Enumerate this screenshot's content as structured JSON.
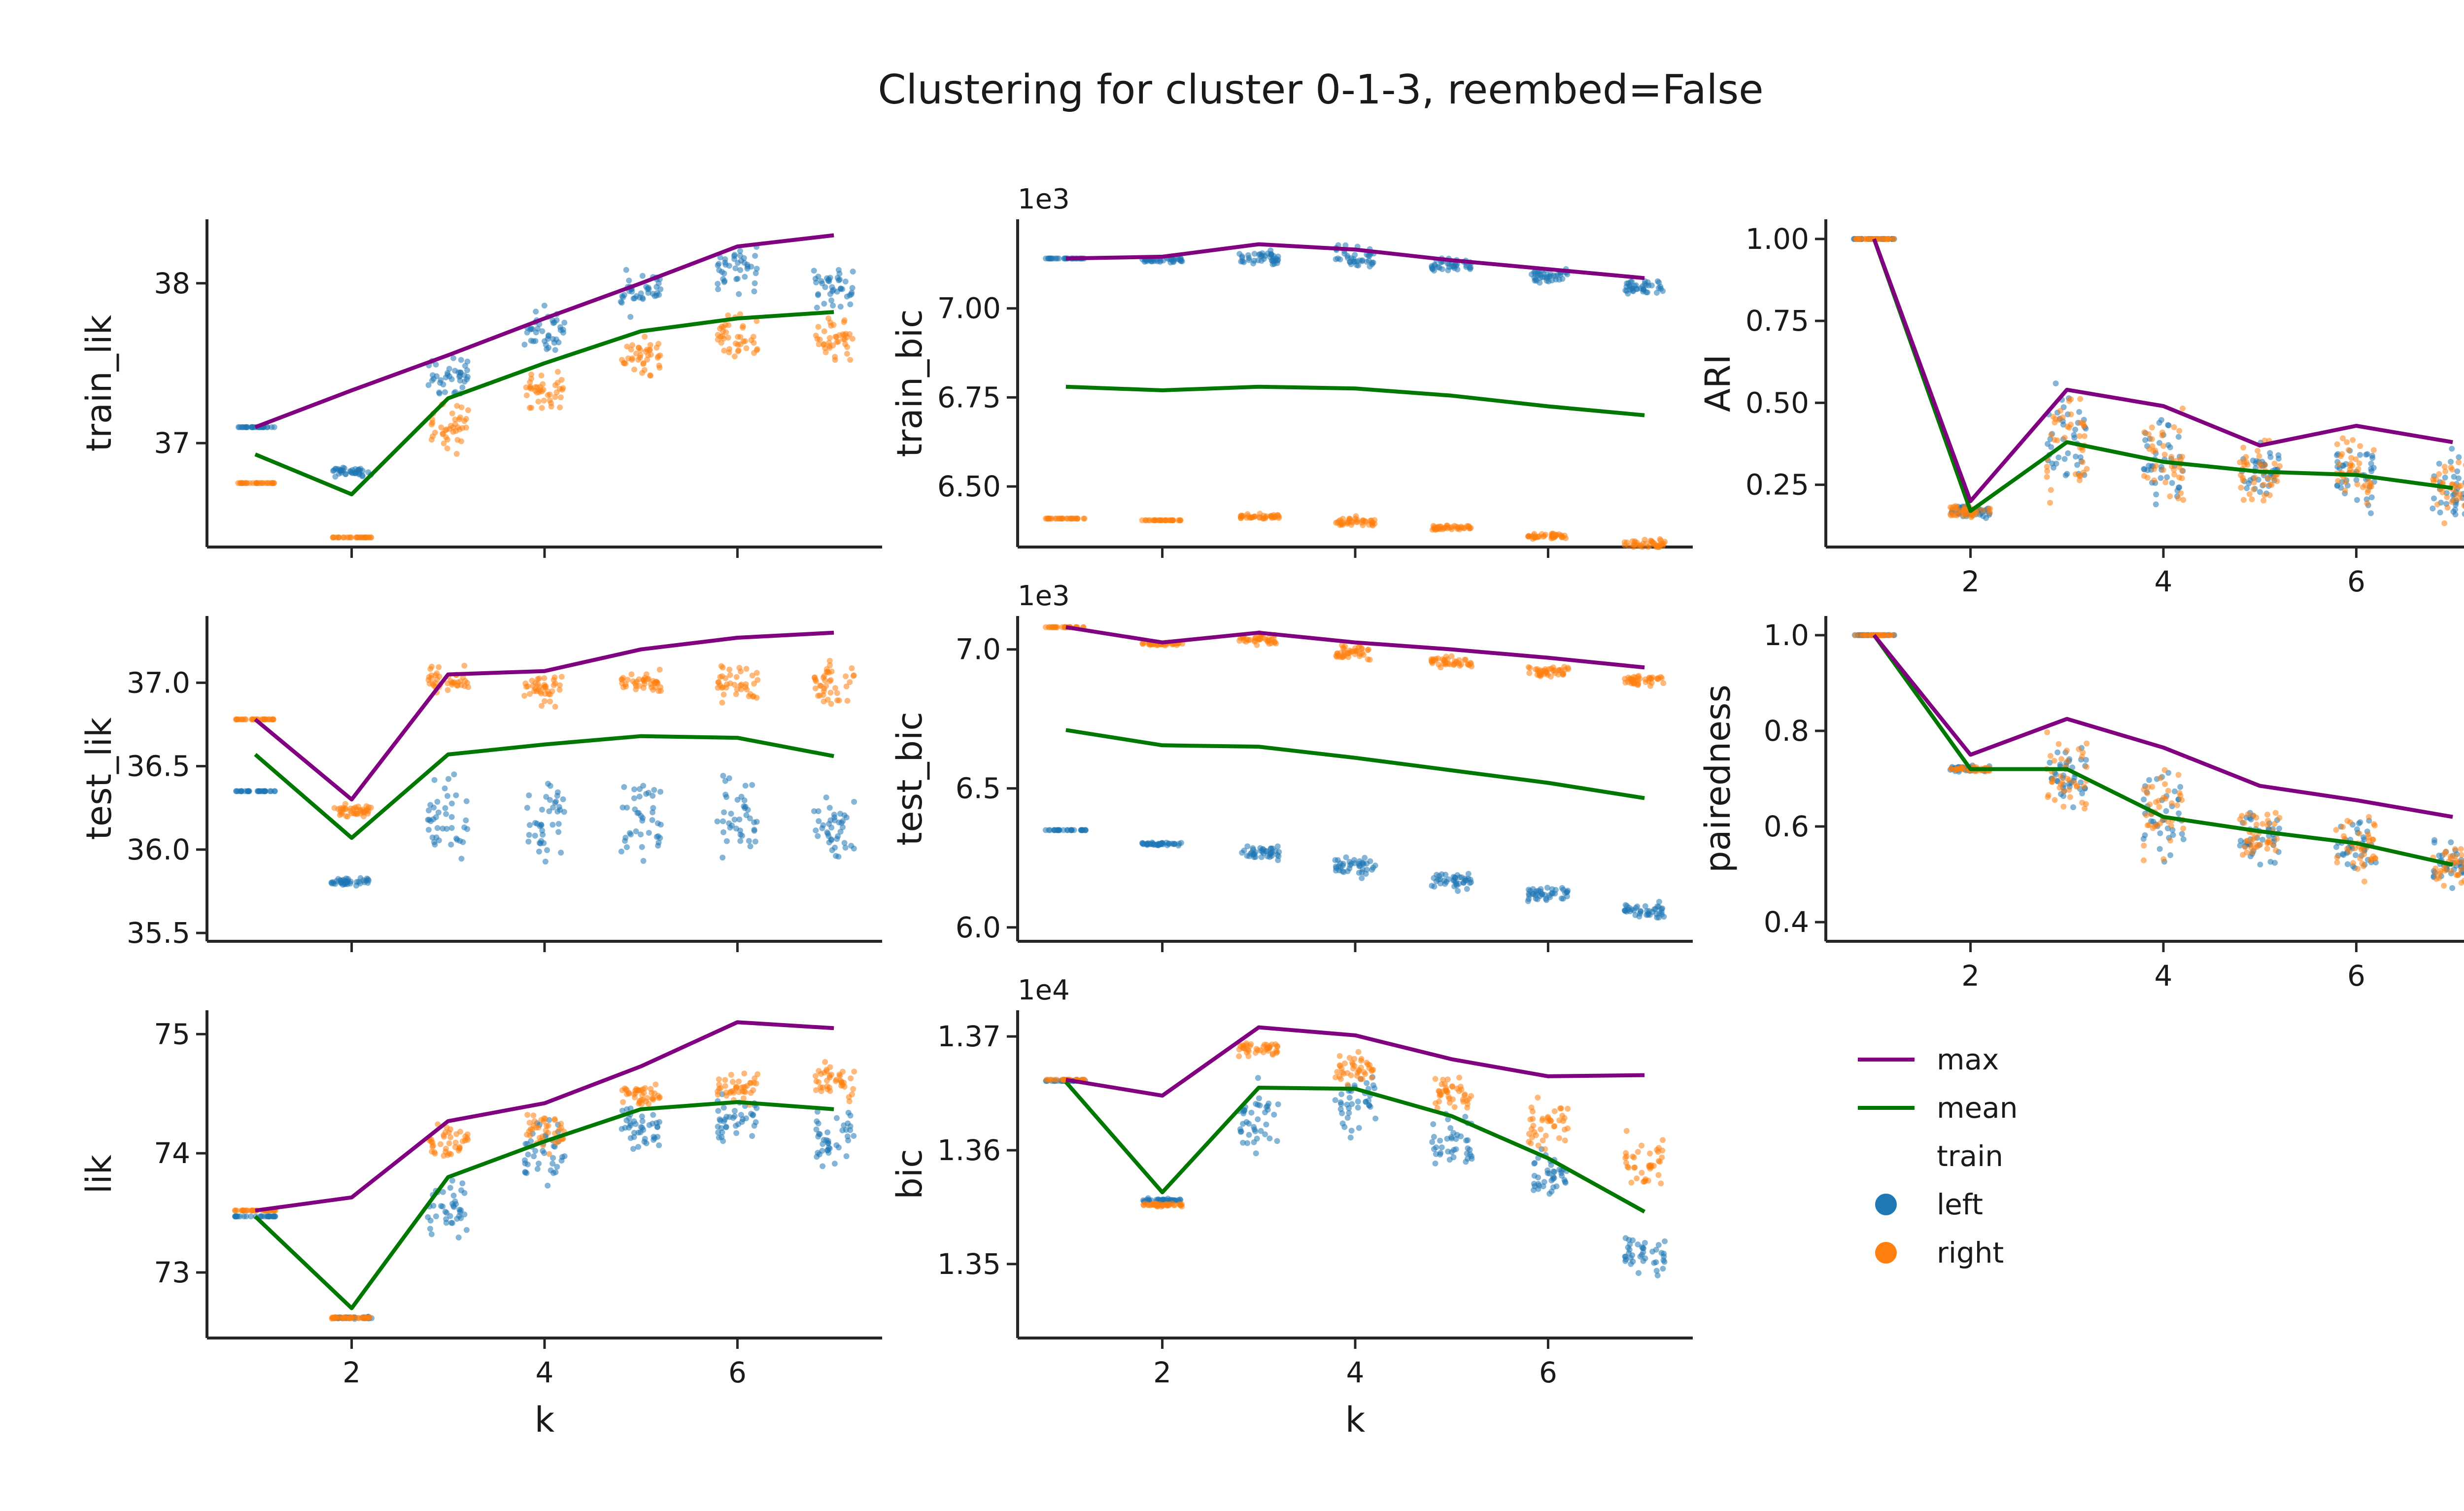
{
  "figure": {
    "title": "Clustering for cluster 0-1-3, reembed=False"
  },
  "colors": {
    "max": "#800080",
    "mean": "#007700",
    "left": "#1f77b4",
    "right": "#ff7f0e"
  },
  "legend": {
    "lines": [
      {
        "label": "max",
        "color": "#800080"
      },
      {
        "label": "mean",
        "color": "#007700"
      }
    ],
    "points_title": "train",
    "points": [
      {
        "label": "left",
        "color": "#1f77b4"
      },
      {
        "label": "right",
        "color": "#ff7f0e"
      }
    ]
  },
  "chart_data": [
    {
      "id": "train_lik",
      "type": "scatter+line",
      "ylabel": "train_lik",
      "xlabel": "",
      "offset": "",
      "ylim": [
        36.35,
        38.4
      ],
      "yticks": [
        37,
        38
      ],
      "ytick_labels": [
        "37",
        "38"
      ],
      "xticks": [
        2,
        4,
        6
      ],
      "show_xtick_labels": false,
      "x": [
        1,
        2,
        3,
        4,
        5,
        6,
        7
      ],
      "max": [
        37.1,
        37.33,
        37.55,
        37.78,
        38.0,
        38.23,
        38.3
      ],
      "mean": [
        36.93,
        36.68,
        37.28,
        37.5,
        37.7,
        37.78,
        37.82
      ],
      "left": [
        [
          37.1,
          0.0
        ],
        [
          36.82,
          0.04
        ],
        [
          37.42,
          0.16
        ],
        [
          37.7,
          0.2
        ],
        [
          37.95,
          0.2
        ],
        [
          38.1,
          0.2
        ],
        [
          37.97,
          0.2
        ]
      ],
      "right": [
        [
          36.75,
          0.0
        ],
        [
          36.41,
          0.0
        ],
        [
          37.1,
          0.22
        ],
        [
          37.33,
          0.15
        ],
        [
          37.55,
          0.18
        ],
        [
          37.65,
          0.2
        ],
        [
          37.65,
          0.18
        ]
      ]
    },
    {
      "id": "train_bic",
      "type": "scatter+line",
      "ylabel": "train_bic",
      "xlabel": "",
      "offset": "1e3",
      "ylim": [
        6.33,
        7.25
      ],
      "yticks": [
        6.5,
        6.75,
        7.0
      ],
      "ytick_labels": [
        "6.50",
        "6.75",
        "7.00"
      ],
      "xticks": [
        2,
        4,
        6
      ],
      "show_xtick_labels": false,
      "x": [
        1,
        2,
        3,
        4,
        5,
        6,
        7
      ],
      "max": [
        7.14,
        7.145,
        7.18,
        7.165,
        7.135,
        7.11,
        7.085
      ],
      "mean": [
        6.78,
        6.77,
        6.78,
        6.775,
        6.755,
        6.725,
        6.7
      ],
      "left": [
        [
          7.14,
          0.0
        ],
        [
          7.135,
          0.01
        ],
        [
          7.14,
          0.03
        ],
        [
          7.14,
          0.05
        ],
        [
          7.12,
          0.03
        ],
        [
          7.09,
          0.03
        ],
        [
          7.06,
          0.03
        ]
      ],
      "right": [
        [
          6.41,
          0.0
        ],
        [
          6.405,
          0.0
        ],
        [
          6.415,
          0.01
        ],
        [
          6.4,
          0.02
        ],
        [
          6.385,
          0.01
        ],
        [
          6.36,
          0.01
        ],
        [
          6.34,
          0.02
        ]
      ]
    },
    {
      "id": "ari",
      "type": "scatter+line",
      "ylabel": "ARI",
      "xlabel": "",
      "offset": "",
      "ylim": [
        0.06,
        1.06
      ],
      "yticks": [
        0.25,
        0.5,
        0.75,
        1.0
      ],
      "ytick_labels": [
        "0.25",
        "0.50",
        "0.75",
        "1.00"
      ],
      "xticks": [
        2,
        4,
        6
      ],
      "show_xtick_labels": true,
      "xtick_labels": [
        "2",
        "4",
        "6"
      ],
      "x": [
        1,
        2,
        3,
        4,
        5,
        6,
        7
      ],
      "max": [
        1.0,
        0.2,
        0.54,
        0.49,
        0.37,
        0.43,
        0.38
      ],
      "mean": [
        1.0,
        0.17,
        0.38,
        0.32,
        0.29,
        0.28,
        0.24
      ],
      "left": [
        [
          1.0,
          0.0
        ],
        [
          0.17,
          0.03
        ],
        [
          0.38,
          0.25
        ],
        [
          0.32,
          0.2
        ],
        [
          0.29,
          0.12
        ],
        [
          0.28,
          0.15
        ],
        [
          0.24,
          0.15
        ]
      ],
      "right": [
        [
          1.0,
          0.0
        ],
        [
          0.17,
          0.03
        ],
        [
          0.38,
          0.25
        ],
        [
          0.32,
          0.2
        ],
        [
          0.29,
          0.12
        ],
        [
          0.28,
          0.15
        ],
        [
          0.24,
          0.15
        ]
      ]
    },
    {
      "id": "test_lik",
      "type": "scatter+line",
      "ylabel": "test_lik",
      "xlabel": "",
      "offset": "",
      "ylim": [
        35.45,
        37.4
      ],
      "yticks": [
        35.5,
        36.0,
        36.5,
        37.0
      ],
      "ytick_labels": [
        "35.5",
        "36.0",
        "36.5",
        "37.0"
      ],
      "xticks": [
        2,
        4,
        6
      ],
      "show_xtick_labels": false,
      "x": [
        1,
        2,
        3,
        4,
        5,
        6,
        7
      ],
      "max": [
        36.78,
        36.3,
        37.05,
        37.07,
        37.2,
        37.27,
        37.3
      ],
      "mean": [
        36.57,
        36.07,
        36.57,
        36.63,
        36.68,
        36.67,
        36.56
      ],
      "left": [
        [
          36.35,
          0.0
        ],
        [
          35.81,
          0.03
        ],
        [
          36.2,
          0.35
        ],
        [
          36.2,
          0.4
        ],
        [
          36.2,
          0.35
        ],
        [
          36.2,
          0.35
        ],
        [
          36.1,
          0.3
        ]
      ],
      "right": [
        [
          36.78,
          0.0
        ],
        [
          36.23,
          0.05
        ],
        [
          37.02,
          0.1
        ],
        [
          36.95,
          0.15
        ],
        [
          37.0,
          0.1
        ],
        [
          37.0,
          0.15
        ],
        [
          37.0,
          0.18
        ]
      ]
    },
    {
      "id": "test_bic",
      "type": "scatter+line",
      "ylabel": "test_bic",
      "xlabel": "",
      "offset": "1e3",
      "ylim": [
        5.95,
        7.12
      ],
      "yticks": [
        6.0,
        6.5,
        7.0
      ],
      "ytick_labels": [
        "6.0",
        "6.5",
        "7.0"
      ],
      "xticks": [
        2,
        4,
        6
      ],
      "show_xtick_labels": false,
      "x": [
        1,
        2,
        3,
        4,
        5,
        6,
        7
      ],
      "max": [
        7.08,
        7.025,
        7.06,
        7.025,
        7.0,
        6.97,
        6.935
      ],
      "mean": [
        6.71,
        6.655,
        6.65,
        6.61,
        6.565,
        6.52,
        6.465
      ],
      "left": [
        [
          6.35,
          0.0
        ],
        [
          6.3,
          0.01
        ],
        [
          6.27,
          0.04
        ],
        [
          6.22,
          0.05
        ],
        [
          6.17,
          0.05
        ],
        [
          6.12,
          0.04
        ],
        [
          6.06,
          0.04
        ]
      ],
      "right": [
        [
          7.08,
          0.0
        ],
        [
          7.02,
          0.01
        ],
        [
          7.04,
          0.03
        ],
        [
          6.99,
          0.04
        ],
        [
          6.95,
          0.03
        ],
        [
          6.92,
          0.03
        ],
        [
          6.89,
          0.03
        ]
      ]
    },
    {
      "id": "pairedness",
      "type": "scatter+line",
      "ylabel": "pairedness",
      "xlabel": "",
      "offset": "",
      "ylim": [
        0.36,
        1.04
      ],
      "yticks": [
        0.4,
        0.6,
        0.8,
        1.0
      ],
      "ytick_labels": [
        "0.4",
        "0.6",
        "0.8",
        "1.0"
      ],
      "xticks": [
        2,
        4,
        6
      ],
      "show_xtick_labels": true,
      "xtick_labels": [
        "2",
        "4",
        "6"
      ],
      "x": [
        1,
        2,
        3,
        4,
        5,
        6,
        7
      ],
      "max": [
        1.0,
        0.75,
        0.825,
        0.765,
        0.685,
        0.655,
        0.62
      ],
      "mean": [
        1.0,
        0.72,
        0.72,
        0.62,
        0.59,
        0.565,
        0.52
      ],
      "left": [
        [
          1.0,
          0.0
        ],
        [
          0.72,
          0.01
        ],
        [
          0.71,
          0.1
        ],
        [
          0.63,
          0.12
        ],
        [
          0.58,
          0.08
        ],
        [
          0.56,
          0.08
        ],
        [
          0.52,
          0.06
        ]
      ],
      "right": [
        [
          1.0,
          0.0
        ],
        [
          0.72,
          0.01
        ],
        [
          0.71,
          0.1
        ],
        [
          0.63,
          0.12
        ],
        [
          0.58,
          0.08
        ],
        [
          0.56,
          0.08
        ],
        [
          0.52,
          0.06
        ]
      ]
    },
    {
      "id": "lik",
      "type": "scatter+line",
      "ylabel": "lik",
      "xlabel": "k",
      "offset": "",
      "ylim": [
        72.45,
        75.2
      ],
      "yticks": [
        73,
        74,
        75
      ],
      "ytick_labels": [
        "73",
        "74",
        "75"
      ],
      "xticks": [
        2,
        4,
        6
      ],
      "show_xtick_labels": true,
      "xtick_labels": [
        "2",
        "4",
        "6"
      ],
      "x": [
        1,
        2,
        3,
        4,
        5,
        6,
        7
      ],
      "max": [
        73.52,
        73.63,
        74.27,
        74.42,
        74.73,
        75.1,
        75.05
      ],
      "mean": [
        73.47,
        72.7,
        73.8,
        74.1,
        74.37,
        74.43,
        74.37
      ],
      "left": [
        [
          73.47,
          0.0
        ],
        [
          72.62,
          0.01
        ],
        [
          73.55,
          0.4
        ],
        [
          74.0,
          0.4
        ],
        [
          74.2,
          0.25
        ],
        [
          74.3,
          0.3
        ],
        [
          74.1,
          0.3
        ]
      ],
      "right": [
        [
          73.52,
          0.0
        ],
        [
          72.62,
          0.01
        ],
        [
          74.1,
          0.2
        ],
        [
          74.2,
          0.25
        ],
        [
          74.5,
          0.15
        ],
        [
          74.55,
          0.2
        ],
        [
          74.6,
          0.25
        ]
      ]
    },
    {
      "id": "bic",
      "type": "scatter+line",
      "ylabel": "bic",
      "xlabel": "k",
      "offset": "1e4",
      "ylim": [
        1.3435,
        1.3723
      ],
      "yticks": [
        1.35,
        1.36,
        1.37
      ],
      "ytick_labels": [
        "1.35",
        "1.36",
        "1.37"
      ],
      "xticks": [
        2,
        4,
        6
      ],
      "show_xtick_labels": true,
      "xtick_labels": [
        "2",
        "4",
        "6"
      ],
      "x": [
        1,
        2,
        3,
        4,
        5,
        6,
        7
      ],
      "max": [
        1.3662,
        1.3648,
        1.3708,
        1.3701,
        1.368,
        1.3665,
        1.3666
      ],
      "mean": [
        1.366,
        1.3563,
        1.3655,
        1.3654,
        1.363,
        1.3593,
        1.3546
      ],
      "left": [
        [
          1.3661,
          0.0
        ],
        [
          1.3556,
          0.0002
        ],
        [
          1.3625,
          0.004
        ],
        [
          1.364,
          0.004
        ],
        [
          1.361,
          0.003
        ],
        [
          1.358,
          0.003
        ],
        [
          1.351,
          0.003
        ]
      ],
      "right": [
        [
          1.3662,
          0.0
        ],
        [
          1.3552,
          0.0002
        ],
        [
          1.369,
          0.001
        ],
        [
          1.367,
          0.002
        ],
        [
          1.365,
          0.002
        ],
        [
          1.3625,
          0.003
        ],
        [
          1.359,
          0.003
        ]
      ]
    }
  ]
}
